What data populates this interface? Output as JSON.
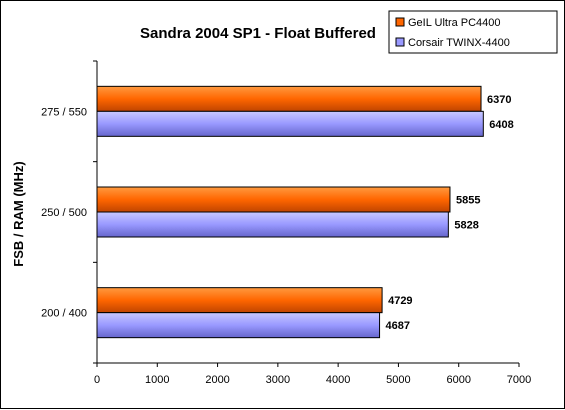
{
  "chart_data": {
    "type": "bar",
    "orientation": "horizontal",
    "title": "Sandra 2004 SP1 - Float Buffered",
    "xlabel": "",
    "ylabel": "FSB / RAM (MHz)",
    "categories": [
      "275 / 550",
      "250 / 500",
      "200 / 400"
    ],
    "series": [
      {
        "name": "GeIL Ultra PC4400",
        "color": "#ff6600",
        "values": [
          6370,
          5855,
          4729
        ]
      },
      {
        "name": "Corsair TWINX-4400",
        "color": "#9999ff",
        "values": [
          6408,
          5828,
          4687
        ]
      }
    ],
    "xlim": [
      0,
      7000
    ],
    "xticks": [
      0,
      1000,
      2000,
      3000,
      4000,
      5000,
      6000,
      7000
    ],
    "grid": false,
    "legend": "top-right"
  }
}
